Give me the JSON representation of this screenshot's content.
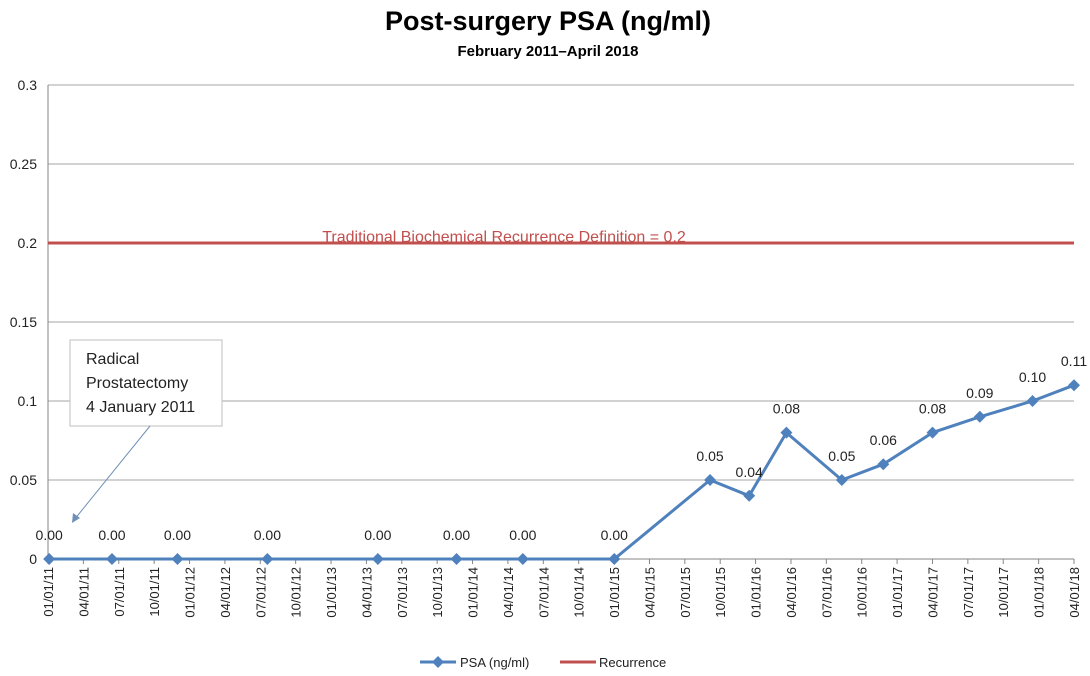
{
  "chart_data": {
    "type": "line",
    "title": "Post-surgery PSA (ng/ml)",
    "subtitle": "February 2011–April 2018",
    "xlabel": "",
    "ylabel": "",
    "ylim": [
      0,
      0.3
    ],
    "y_ticks": [
      "0",
      "0.05",
      "0.1",
      "0.15",
      "0.2",
      "0.25",
      "0.3"
    ],
    "x_ticks": [
      "01/01/11",
      "04/01/11",
      "07/01/11",
      "10/01/11",
      "01/01/12",
      "04/01/12",
      "07/01/12",
      "10/01/12",
      "01/01/13",
      "04/01/13",
      "07/01/13",
      "10/01/13",
      "01/01/14",
      "04/01/14",
      "07/01/14",
      "10/01/14",
      "01/01/15",
      "04/01/15",
      "07/01/15",
      "10/01/15",
      "01/01/16",
      "04/01/16",
      "07/01/16",
      "10/01/16",
      "01/01/17",
      "04/01/17",
      "07/01/17",
      "10/01/17",
      "01/01/18",
      "04/01/18"
    ],
    "grid": true,
    "legend_position": "bottom",
    "series": [
      {
        "name": "PSA (ng/ml)",
        "color": "#4f81bd",
        "marker": "diamond",
        "points": [
          {
            "x": "2011-01-04",
            "y": 0.0,
            "label": "0.00"
          },
          {
            "x": "2011-06-15",
            "y": 0.0,
            "label": "0.00"
          },
          {
            "x": "2011-12-01",
            "y": 0.0,
            "label": "0.00"
          },
          {
            "x": "2012-07-20",
            "y": 0.0,
            "label": "0.00"
          },
          {
            "x": "2013-05-01",
            "y": 0.0,
            "label": "0.00"
          },
          {
            "x": "2013-11-20",
            "y": 0.0,
            "label": "0.00"
          },
          {
            "x": "2014-05-10",
            "y": 0.0,
            "label": "0.00"
          },
          {
            "x": "2015-01-01",
            "y": 0.0,
            "label": "0.00"
          },
          {
            "x": "2015-09-05",
            "y": 0.05,
            "label": "0.05"
          },
          {
            "x": "2015-12-15",
            "y": 0.04,
            "label": "0.04"
          },
          {
            "x": "2016-03-20",
            "y": 0.08,
            "label": "0.08"
          },
          {
            "x": "2016-08-10",
            "y": 0.05,
            "label": "0.05"
          },
          {
            "x": "2016-11-25",
            "y": 0.06,
            "label": "0.06"
          },
          {
            "x": "2017-04-01",
            "y": 0.08,
            "label": "0.08"
          },
          {
            "x": "2017-08-01",
            "y": 0.09,
            "label": "0.09"
          },
          {
            "x": "2017-12-15",
            "y": 0.1,
            "label": "0.10"
          },
          {
            "x": "2018-04-01",
            "y": 0.11,
            "label": "0.11"
          }
        ]
      },
      {
        "name": "Recurrence",
        "color": "#c0504d",
        "y": 0.2,
        "label": "Traditional Biochemical  Recurrence Definition = 0.2"
      }
    ],
    "annotations": [
      {
        "text_lines": [
          "Radical",
          "Prostatectomy",
          "4 January 2011"
        ],
        "points_to": {
          "x": "2011-01-04",
          "y": 0.0
        }
      }
    ]
  }
}
